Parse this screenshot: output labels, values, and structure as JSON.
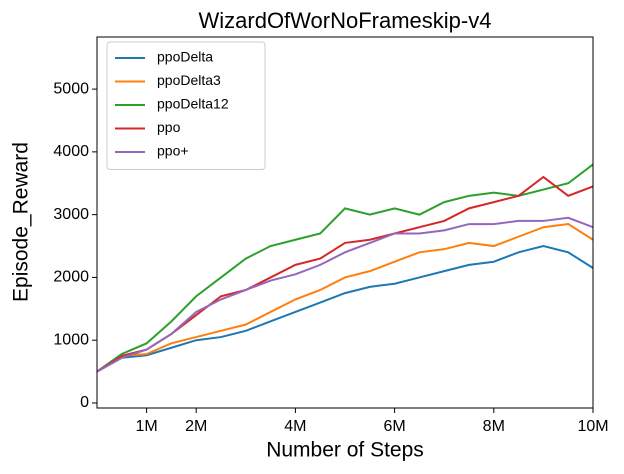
{
  "chart_data": {
    "type": "line",
    "title": "WizardOfWorNoFrameskip-v4",
    "x_label": "Number of Steps",
    "y_label": "Episode_Reward",
    "x": [
      0,
      500000,
      1000000,
      1500000,
      2000000,
      2500000,
      3000000,
      3500000,
      4000000,
      4500000,
      5000000,
      5500000,
      6000000,
      6500000,
      7000000,
      7500000,
      8000000,
      8500000,
      9000000,
      9500000,
      10000000
    ],
    "series": [
      {
        "name": "ppoDelta",
        "color": "#1f77b4",
        "values": [
          500,
          720,
          760,
          880,
          1000,
          1050,
          1150,
          1300,
          1450,
          1600,
          1750,
          1850,
          1900,
          2000,
          2100,
          2200,
          2250,
          2400,
          2500,
          2400,
          2150
        ]
      },
      {
        "name": "ppoDelta3",
        "color": "#ff7f0e",
        "values": [
          500,
          750,
          780,
          950,
          1050,
          1150,
          1250,
          1450,
          1650,
          1800,
          2000,
          2100,
          2250,
          2400,
          2450,
          2550,
          2500,
          2650,
          2800,
          2850,
          2600
        ]
      },
      {
        "name": "ppoDelta12",
        "color": "#2ca02c",
        "values": [
          500,
          780,
          950,
          1300,
          1700,
          2000,
          2300,
          2500,
          2600,
          2700,
          3100,
          3000,
          3100,
          3000,
          3200,
          3300,
          3350,
          3300,
          3400,
          3500,
          3800
        ]
      },
      {
        "name": "ppo",
        "color": "#d62728",
        "values": [
          500,
          750,
          850,
          1100,
          1400,
          1700,
          1800,
          2000,
          2200,
          2300,
          2550,
          2600,
          2700,
          2800,
          2900,
          3100,
          3200,
          3300,
          3600,
          3300,
          3450
        ]
      },
      {
        "name": "ppo+",
        "color": "#9467bd",
        "values": [
          500,
          720,
          850,
          1100,
          1450,
          1650,
          1800,
          1950,
          2050,
          2200,
          2400,
          2550,
          2700,
          2700,
          2750,
          2850,
          2850,
          2900,
          2900,
          2950,
          2800
        ]
      }
    ],
    "xlim": [
      0,
      10000000
    ],
    "xticks": [
      {
        "value": 1000000,
        "label": "1M"
      },
      {
        "value": 2000000,
        "label": "2M"
      },
      {
        "value": 4000000,
        "label": "4M"
      },
      {
        "value": 6000000,
        "label": "6M"
      },
      {
        "value": 8000000,
        "label": "8M"
      },
      {
        "value": 10000000,
        "label": "10M"
      }
    ],
    "ylim": [
      -80,
      5830
    ],
    "yticks": [
      0,
      1000,
      2000,
      3000,
      4000,
      5000
    ],
    "legend": "upper left"
  }
}
